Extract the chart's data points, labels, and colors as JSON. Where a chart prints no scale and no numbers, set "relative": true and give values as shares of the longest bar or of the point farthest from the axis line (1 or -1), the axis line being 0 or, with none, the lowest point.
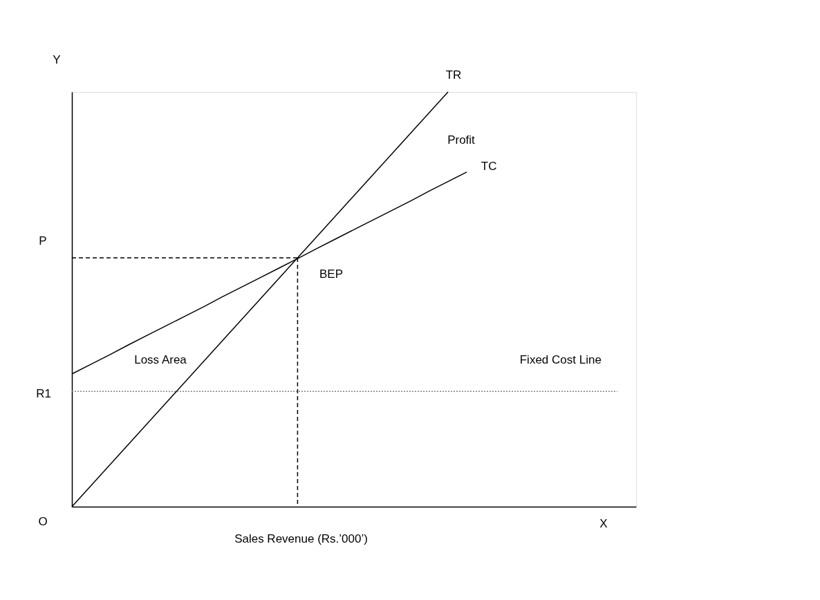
{
  "chart_data": {
    "type": "line",
    "relative": true,
    "xlabel": "Sales Revenue (Rs.’000’)",
    "categories": [
      null,
      null,
      null,
      null,
      null,
      null,
      null,
      null,
      null,
      null,
      null,
      null,
      null,
      null,
      null,
      null,
      null,
      null,
      null,
      null,
      null,
      null,
      null,
      null,
      null,
      null,
      null,
      null,
      null,
      null,
      null
    ],
    "series": [
      {
        "name": "TR",
        "color": "#000000",
        "values": [
          0,
          0.05,
          0.1,
          0.15,
          0.2,
          0.25,
          0.3,
          0.35,
          0.4,
          0.45,
          0.5,
          0.55,
          0.6,
          0.65,
          0.7,
          0.75,
          0.8,
          0.85,
          0.9,
          0.95,
          1,
          null,
          null,
          null,
          null,
          null,
          null,
          null,
          null,
          null,
          null
        ]
      },
      {
        "name": "TC",
        "color": "#000000",
        "values": [
          0.32,
          0.343,
          0.366,
          0.39,
          0.413,
          0.436,
          0.459,
          0.482,
          0.506,
          0.529,
          0.552,
          0.575,
          0.598,
          0.622,
          0.645,
          0.668,
          0.691,
          0.714,
          0.737,
          0.761,
          0.784,
          0.807,
          null,
          null,
          null,
          null,
          null,
          null,
          null,
          null,
          null
        ]
      },
      {
        "color": "#000000",
        "line_style": "dashed",
        "values": [
          0.6,
          0.6,
          0.6,
          0.6,
          0.6,
          0.6,
          0.6,
          0.6,
          0.6,
          0.6,
          0.6,
          0.6,
          0.6,
          null,
          null,
          null,
          null,
          null,
          null,
          null,
          null,
          null,
          null,
          null,
          null,
          null,
          null,
          null,
          null,
          null,
          null
        ]
      },
      {
        "name": "Fixed Cost Line",
        "color": "#808080",
        "line_style": "dotted",
        "values": [
          0.278,
          0.278,
          0.278,
          0.278,
          0.278,
          0.278,
          0.278,
          0.278,
          0.278,
          0.278,
          0.278,
          0.278,
          0.278,
          0.278,
          0.278,
          0.278,
          0.278,
          0.278,
          0.278,
          0.278,
          0.278,
          0.278,
          0.278,
          0.278,
          0.278,
          0.278,
          0.278,
          0.278,
          0.278,
          0.278,
          null
        ]
      }
    ],
    "annotations": [
      "Y",
      "P",
      "R1",
      "O",
      "X",
      "Profit",
      "BEP",
      "Loss Area"
    ],
    "grid": false,
    "legend": false,
    "line_style": "solid"
  }
}
